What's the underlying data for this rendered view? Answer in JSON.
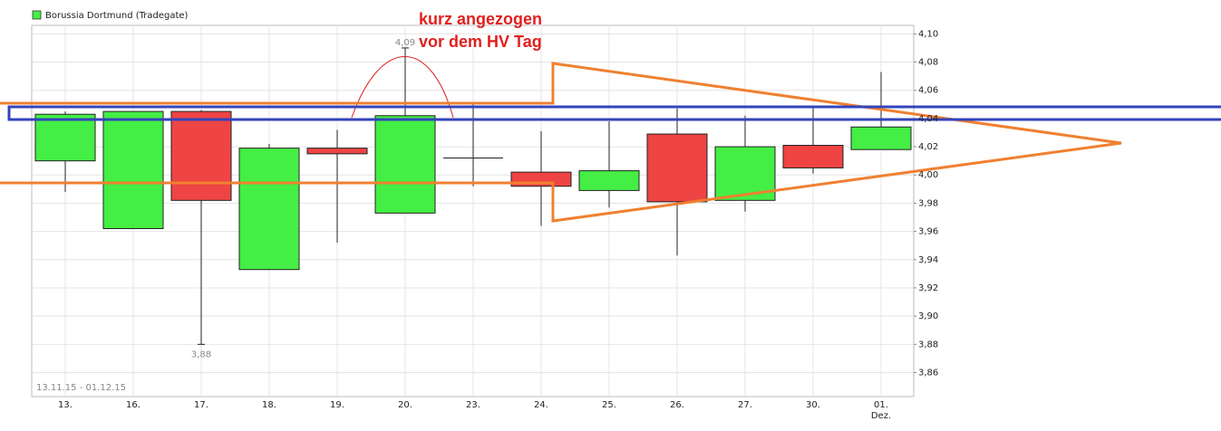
{
  "chart_data": {
    "type": "candlestick",
    "legend": "Borussia Dortmund (Tradegate)",
    "annotation_lines": [
      "kurz angezogen",
      "vor dem HV Tag"
    ],
    "date_range": "13.11.15 - 01.12.15",
    "categories": [
      "13.",
      "16.",
      "17.",
      "18.",
      "19.",
      "20.",
      "23.",
      "24.",
      "25.",
      "26.",
      "27.",
      "30.",
      "01."
    ],
    "month_label": "Dez.",
    "open": [
      4.01,
      3.962,
      4.045,
      3.933,
      4.019,
      3.973,
      4.012,
      4.002,
      3.989,
      4.029,
      3.982,
      4.021,
      4.018
    ],
    "high": [
      4.045,
      4.045,
      4.046,
      4.022,
      4.032,
      4.09,
      4.051,
      4.031,
      4.038,
      4.047,
      4.042,
      4.049,
      4.073
    ],
    "low": [
      3.988,
      3.962,
      3.88,
      3.933,
      3.952,
      3.973,
      3.992,
      3.964,
      3.977,
      3.943,
      3.974,
      4.001,
      4.018
    ],
    "close": [
      4.043,
      4.045,
      3.982,
      4.019,
      4.015,
      4.042,
      4.012,
      3.992,
      4.003,
      3.981,
      4.02,
      4.005,
      4.034
    ],
    "high_labels": [
      null,
      null,
      null,
      null,
      null,
      "4,09",
      null,
      null,
      null,
      null,
      null,
      null,
      null
    ],
    "low_labels": [
      null,
      null,
      "3,88",
      null,
      null,
      null,
      null,
      null,
      null,
      null,
      null,
      null,
      null
    ],
    "up_color": "#44ee44",
    "down_color": "#ee4444",
    "ylim": [
      3.843,
      4.106
    ],
    "yticks": [
      {
        "value": 3.86,
        "label": "3,86"
      },
      {
        "value": 3.88,
        "label": "3,88"
      },
      {
        "value": 3.9,
        "label": "3,90"
      },
      {
        "value": 3.92,
        "label": "3,92"
      },
      {
        "value": 3.94,
        "label": "3,94"
      },
      {
        "value": 3.96,
        "label": "3,96"
      },
      {
        "value": 3.98,
        "label": "3,98"
      },
      {
        "value": 4.0,
        "label": "4,00"
      },
      {
        "value": 4.02,
        "label": "4,02"
      },
      {
        "value": 4.04,
        "label": "4,04"
      },
      {
        "value": 4.06,
        "label": "4,06"
      },
      {
        "value": 4.08,
        "label": "4,08"
      },
      {
        "value": 4.1,
        "label": "4,10"
      }
    ],
    "grid": true
  }
}
